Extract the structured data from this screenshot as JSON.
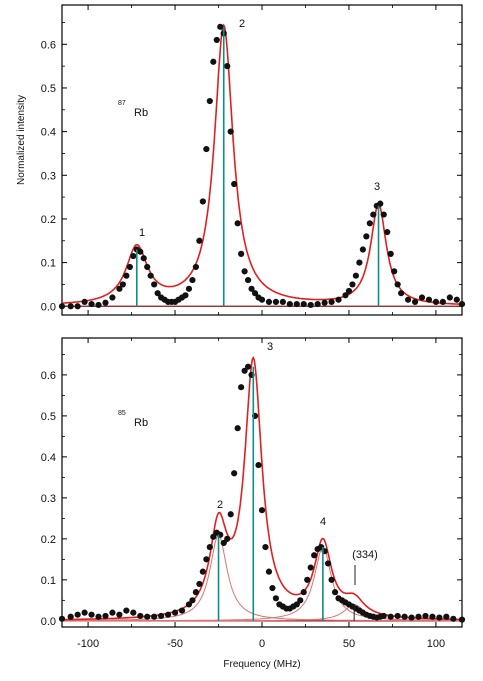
{
  "figure": {
    "xlabel": "Frequency (MHz)",
    "ylabel": "Normalized intensity",
    "accent_colors": {
      "fit": "#e02020",
      "component": "#e27070",
      "stick": "#0b8f8a",
      "data": "#111111",
      "baseline": "#8a1a1a"
    }
  },
  "chart_data": [
    {
      "type": "line",
      "panel": "top",
      "isotope": {
        "mass": "87",
        "element": "Rb"
      },
      "xlim": [
        -115,
        115
      ],
      "ylim": [
        -0.02,
        0.69
      ],
      "xticks": [
        -100,
        -50,
        0,
        50,
        100
      ],
      "yticks": [
        0.0,
        0.1,
        0.2,
        0.3,
        0.4,
        0.5,
        0.6
      ],
      "ytick_labels": [
        "0.0",
        "0.1",
        "0.2",
        "0.3",
        "0.4",
        "0.5",
        "0.6"
      ],
      "grid": false,
      "show_x_tick_labels": false,
      "peaks": [
        {
          "label": "1",
          "x": -72,
          "height": 0.13,
          "width": 7.5
        },
        {
          "label": "2",
          "x": -22,
          "height": 0.64,
          "width": 6.5
        },
        {
          "label": "3",
          "x": 67,
          "height": 0.23,
          "width": 5.5
        }
      ],
      "components": [],
      "series": [
        {
          "role": "data",
          "x": [
            -115,
            -110,
            -106,
            -102,
            -98,
            -94,
            -90,
            -86,
            -82,
            -80,
            -78,
            -76,
            -74,
            -72,
            -70,
            -68,
            -66,
            -64,
            -62,
            -60,
            -58,
            -56,
            -54,
            -52,
            -50,
            -48,
            -46,
            -44,
            -42,
            -40,
            -38,
            -36,
            -34,
            -32,
            -30,
            -28,
            -26,
            -24,
            -22,
            -20,
            -18,
            -16,
            -14,
            -12,
            -10,
            -8,
            -6,
            -4,
            -2,
            0,
            4,
            8,
            12,
            16,
            20,
            24,
            28,
            32,
            36,
            40,
            44,
            48,
            50,
            52,
            54,
            56,
            58,
            60,
            62,
            64,
            66,
            68,
            70,
            72,
            74,
            76,
            78,
            80,
            84,
            88,
            92,
            96,
            100,
            104,
            108,
            112,
            115
          ],
          "y": [
            0.0,
            0.0,
            0.0,
            0.01,
            0.005,
            0.003,
            0.008,
            0.02,
            0.04,
            0.05,
            0.07,
            0.09,
            0.115,
            0.13,
            0.125,
            0.11,
            0.09,
            0.07,
            0.05,
            0.03,
            0.02,
            0.015,
            0.01,
            0.01,
            0.01,
            0.015,
            0.02,
            0.025,
            0.04,
            0.06,
            0.09,
            0.15,
            0.24,
            0.36,
            0.47,
            0.56,
            0.61,
            0.64,
            0.625,
            0.55,
            0.4,
            0.28,
            0.19,
            0.12,
            0.08,
            0.06,
            0.04,
            0.03,
            0.02,
            0.015,
            0.01,
            0.01,
            0.01,
            0.005,
            0.005,
            0.005,
            0.003,
            0.005,
            0.008,
            0.01,
            0.015,
            0.025,
            0.035,
            0.05,
            0.07,
            0.1,
            0.13,
            0.16,
            0.19,
            0.21,
            0.23,
            0.235,
            0.21,
            0.17,
            0.12,
            0.08,
            0.05,
            0.03,
            0.015,
            0.01,
            0.02,
            0.015,
            0.01,
            0.01,
            0.02,
            0.015,
            0.005
          ]
        },
        {
          "role": "fit"
        }
      ]
    },
    {
      "type": "line",
      "panel": "bottom",
      "isotope": {
        "mass": "85",
        "element": "Rb"
      },
      "xlim": [
        -115,
        115
      ],
      "ylim": [
        -0.015,
        0.69
      ],
      "xticks": [
        -100,
        -50,
        0,
        50,
        100
      ],
      "xtick_labels": [
        "-100",
        "-50",
        "0",
        "50",
        "100"
      ],
      "yticks": [
        0.0,
        0.1,
        0.2,
        0.3,
        0.4,
        0.5,
        0.6
      ],
      "ytick_labels": [
        "0.0",
        "0.1",
        "0.2",
        "0.3",
        "0.4",
        "0.5",
        "0.6"
      ],
      "grid": false,
      "show_x_tick_labels": true,
      "peaks": [
        {
          "label": "2",
          "x": -25,
          "height": 0.21,
          "width": 6.0
        },
        {
          "label": "3",
          "x": -5,
          "height": 0.62,
          "width": 6.0
        },
        {
          "label": "4",
          "x": 35,
          "height": 0.18,
          "width": 6.0
        },
        {
          "label": "(334)",
          "x": 53,
          "height": 0.04,
          "width": 7.0
        }
      ],
      "components": [
        {
          "x": -25,
          "height": 0.21,
          "width": 6.0
        },
        {
          "x": 35,
          "height": 0.18,
          "width": 6.0
        },
        {
          "x": 53,
          "height": 0.04,
          "width": 7.0
        }
      ],
      "series": [
        {
          "role": "data",
          "x": [
            -115,
            -110,
            -106,
            -102,
            -98,
            -94,
            -90,
            -86,
            -82,
            -78,
            -74,
            -70,
            -66,
            -62,
            -58,
            -54,
            -50,
            -46,
            -42,
            -40,
            -38,
            -36,
            -34,
            -32,
            -30,
            -28,
            -26,
            -24,
            -22,
            -20,
            -18,
            -16,
            -14,
            -12,
            -10,
            -8,
            -6,
            -4,
            -2,
            0,
            2,
            4,
            6,
            8,
            10,
            12,
            14,
            16,
            18,
            20,
            22,
            24,
            26,
            28,
            30,
            32,
            34,
            36,
            38,
            40,
            42,
            44,
            46,
            48,
            50,
            52,
            54,
            56,
            58,
            60,
            62,
            64,
            66,
            68,
            70,
            74,
            78,
            82,
            86,
            90,
            94,
            98,
            102,
            106,
            110,
            115
          ],
          "y": [
            0.005,
            0.01,
            0.015,
            0.02,
            0.015,
            0.01,
            0.012,
            0.02,
            0.015,
            0.025,
            0.02,
            0.012,
            0.01,
            0.01,
            0.012,
            0.015,
            0.02,
            0.025,
            0.04,
            0.05,
            0.07,
            0.09,
            0.12,
            0.15,
            0.18,
            0.205,
            0.215,
            0.21,
            0.19,
            0.2,
            0.26,
            0.36,
            0.47,
            0.57,
            0.61,
            0.62,
            0.6,
            0.5,
            0.38,
            0.27,
            0.18,
            0.12,
            0.08,
            0.055,
            0.04,
            0.035,
            0.03,
            0.03,
            0.035,
            0.04,
            0.05,
            0.07,
            0.1,
            0.13,
            0.16,
            0.175,
            0.18,
            0.17,
            0.14,
            0.1,
            0.07,
            0.055,
            0.05,
            0.045,
            0.04,
            0.035,
            0.03,
            0.025,
            0.02,
            0.015,
            0.012,
            0.01,
            0.008,
            0.01,
            0.012,
            0.01,
            0.012,
            0.01,
            0.008,
            0.01,
            0.012,
            0.01,
            0.008,
            0.01,
            0.005,
            0.003
          ]
        },
        {
          "role": "fit"
        }
      ]
    }
  ]
}
